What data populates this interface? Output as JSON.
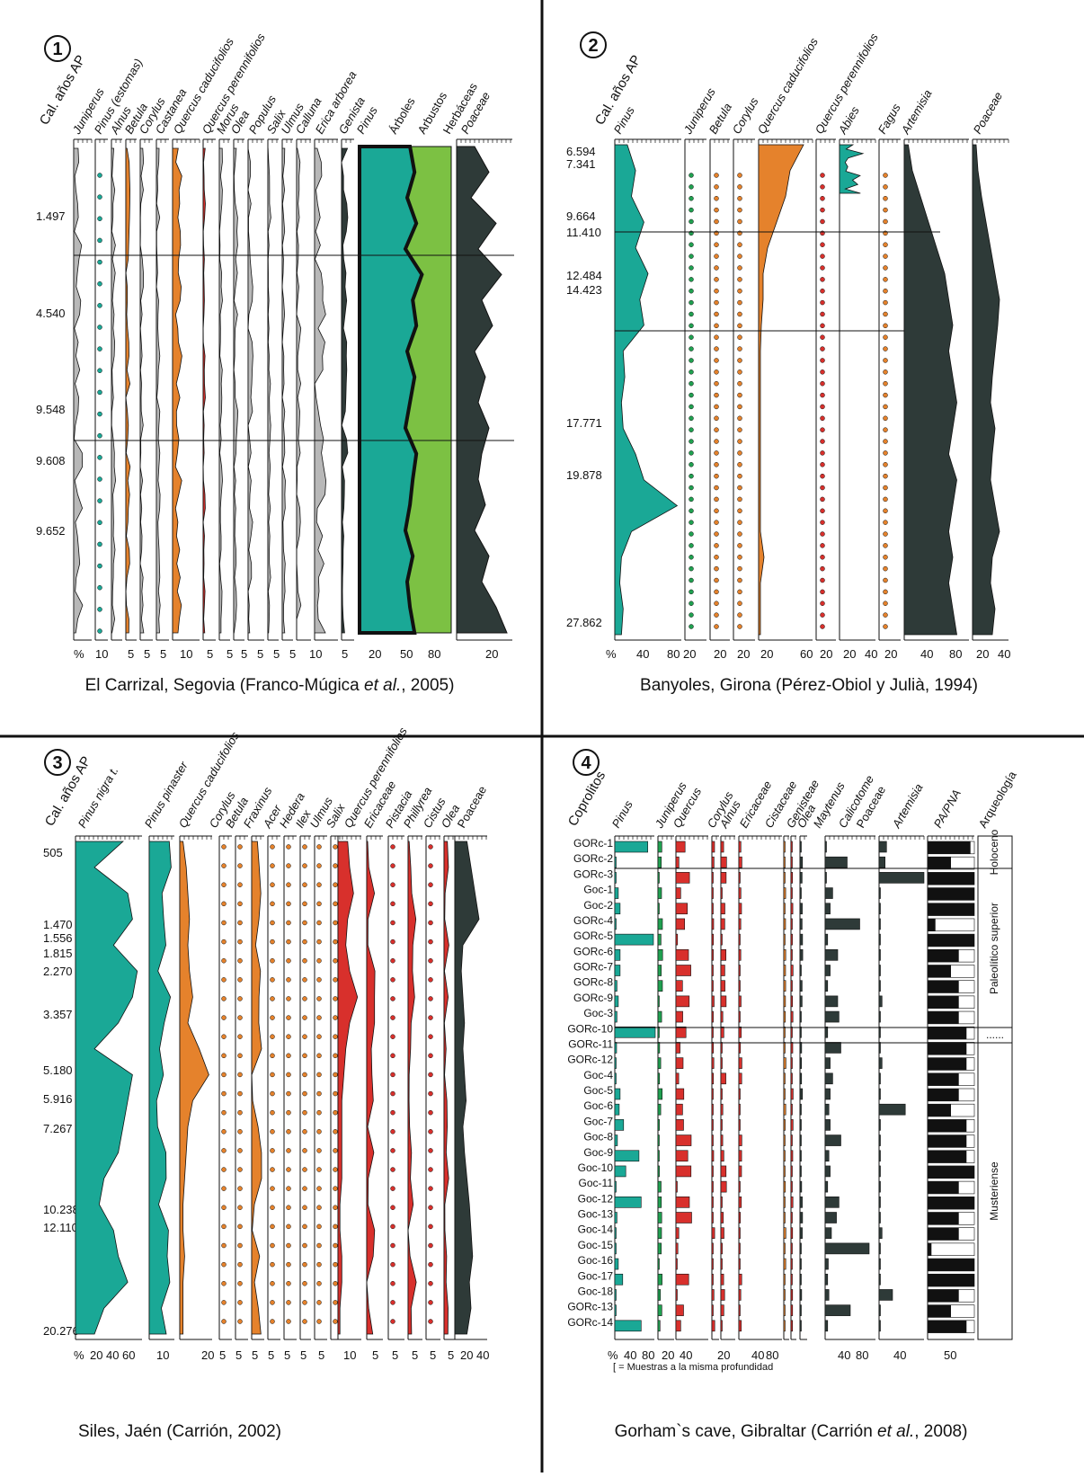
{
  "colors": {
    "teal": "#1aa896",
    "orange": "#e5822c",
    "red": "#d8302c",
    "dark": "#2e3a38",
    "lightgreen": "#7cc143",
    "green": "#20a050",
    "grey": "#b8b8b8"
  },
  "panels": [
    {
      "number": "1",
      "caption": "El Carrizal, Segovia (Franco-Múgica et al., 2005)",
      "caption_pre": "El Carrizal, Segovia (Franco-Múgica ",
      "caption_italic": "et al.",
      "caption_post": ", 2005)",
      "axis_title": "Cal. años AP",
      "ages": [
        "1.497",
        "4.540",
        "9.548",
        "9.608",
        "9.652"
      ],
      "taxa": [
        "Juniperus",
        "Pinus (estomas)",
        "Alnus",
        "Betula",
        "Corylus",
        "Castanea",
        "Quercus caducifolios",
        "Quercus perennifolios",
        "Morus",
        "Olea",
        "Populus",
        "Salix",
        "Ulmus",
        "Calluna",
        "Erica arborea",
        "Genista",
        "Pinus",
        "Árboles",
        "Arbustos",
        "Herbáceas",
        "Poaceae"
      ],
      "axis_ticks": [
        "%",
        "10",
        "5",
        "5",
        "5",
        "10",
        "5",
        "5",
        "5",
        "5",
        "5",
        "5",
        "10",
        "5",
        "20",
        "50",
        "80",
        "20"
      ]
    },
    {
      "number": "2",
      "caption": "Banyoles, Girona (Pérez-Obiol y Julià, 1994)",
      "axis_title": "Cal. años AP",
      "ages": [
        "6.594",
        "7.341",
        "9.664",
        "11.410",
        "12.484",
        "14.423",
        "17.771",
        "19.878",
        "27.862"
      ],
      "taxa": [
        "Pinus",
        "Juniperus",
        "Betula",
        "Corylus",
        "Quercus caducifolios",
        "Quercus perennifolios",
        "Abies",
        "Fagus",
        "Artemisia",
        "Poaceae"
      ],
      "axis_ticks": [
        "%",
        "40",
        "80",
        "20",
        "20",
        "20",
        "20",
        "60",
        "20",
        "20",
        "40",
        "20",
        "40",
        "80",
        "20",
        "40"
      ]
    },
    {
      "number": "3",
      "caption": "Siles, Jaén (Carrión, 2002)",
      "axis_title": "Cal. años AP",
      "ages": [
        "505",
        "1.470",
        "1.556",
        "1.815",
        "2.270",
        "3.357",
        "5.180",
        "5.916",
        "7.267",
        "10.238",
        "12.110",
        "20.276"
      ],
      "taxa": [
        "Pinus nigra t.",
        "Pinus pinaster",
        "Quercus caducifolios",
        "Corylus",
        "Betula",
        "Fraxinus",
        "Acer",
        "Hedera",
        "Ilex",
        "Ulmus",
        "Salix",
        "Quercus perennifolios",
        "Ericaceae",
        "Pistacia",
        "Phillyrea",
        "Cistus",
        "Olea",
        "Poaceae"
      ],
      "axis_ticks": [
        "%",
        "20",
        "40",
        "60",
        "10",
        "20",
        "5",
        "5",
        "5",
        "5",
        "5",
        "5",
        "5",
        "10",
        "5",
        "5",
        "5",
        "5",
        "5",
        "20",
        "40"
      ]
    },
    {
      "number": "4",
      "caption": "Gorham`s cave, Gibraltar (Carrión et al., 2008)",
      "caption_pre": "Gorham`s cave, Gibraltar (Carrión ",
      "caption_italic": "et al.",
      "caption_post": ", 2008)",
      "axis_title": "Coprolitos",
      "samples": [
        "GORc-1",
        "GORc-2",
        "GORc-3",
        "Goc-1",
        "Goc-2",
        "GORc-4",
        "GORc-5",
        "GORc-6",
        "GORc-7",
        "GORc-8",
        "GORc-9",
        "Goc-3",
        "GORc-10",
        "GORc-11",
        "GORc-12",
        "Goc-4",
        "Goc-5",
        "Goc-6",
        "Goc-7",
        "Goc-8",
        "Goc-9",
        "Goc-10",
        "Goc-11",
        "Goc-12",
        "Goc-13",
        "Goc-14",
        "Goc-15",
        "Goc-16",
        "Goc-17",
        "Goc-18",
        "GORc-13",
        "GORc-14"
      ],
      "taxa": [
        "Pinus",
        "Juniperus",
        "Quercus",
        "Corylus",
        "Alnus",
        "Ericaceae",
        "Cistaceae",
        "Genisteae",
        "Olea",
        "Maytenus",
        "Calicotome",
        "Poaceae",
        "Artemisia",
        "PA/PNA",
        "Arqueología"
      ],
      "archaeology": [
        "Holoceno",
        "Paleolítico superior",
        "......",
        "Musteriense"
      ],
      "axis_ticks": [
        "%",
        "40",
        "80",
        "20",
        "40",
        "20",
        "40",
        "80",
        "40",
        "80",
        "40",
        "50"
      ],
      "footnote": "[ = Muestras a la misma profundidad"
    }
  ],
  "chart_data": [
    {
      "type": "area",
      "title": "El Carrizal, Segovia (Franco-Múgica et al., 2005)",
      "ylabel": "Cal. años AP",
      "xlabel": "%",
      "y_ticks": [
        "1.497",
        "4.540",
        "9.548",
        "9.608",
        "9.652"
      ],
      "series": [
        {
          "name": "Pinus",
          "values": [
            55,
            60,
            52,
            62,
            50,
            68,
            58,
            62,
            52,
            60,
            55,
            50,
            62,
            58,
            55,
            50,
            58,
            52,
            55,
            60
          ]
        },
        {
          "name": "Poaceae",
          "values": [
            10,
            18,
            8,
            22,
            12,
            25,
            14,
            20,
            10,
            16,
            12,
            18,
            14,
            12,
            16,
            10,
            18,
            14,
            22,
            28
          ]
        },
        {
          "name": "Quercus caducifolios",
          "values": [
            2,
            3,
            4,
            3,
            4,
            3,
            3,
            4,
            3,
            3,
            4,
            3,
            3,
            3,
            2,
            2,
            2,
            2,
            2,
            2
          ]
        }
      ]
    },
    {
      "type": "area",
      "title": "Banyoles, Girona (Pérez-Obiol y Julià, 1994)",
      "ylabel": "Cal. años AP",
      "xlabel": "%",
      "y_ticks": [
        "6.594",
        "7.341",
        "9.664",
        "11.410",
        "12.484",
        "14.423",
        "17.771",
        "19.878",
        "27.862"
      ],
      "series": [
        {
          "name": "Pinus",
          "values": [
            15,
            25,
            20,
            35,
            25,
            40,
            30,
            35,
            10,
            12,
            8,
            10,
            25,
            35,
            75,
            20,
            8,
            6,
            10,
            8
          ]
        },
        {
          "name": "Quercus caducifolios",
          "values": [
            50,
            35,
            30,
            20,
            10,
            5,
            5,
            3,
            2,
            2,
            2,
            2,
            2,
            2,
            2,
            2,
            6,
            2,
            2,
            2
          ]
        },
        {
          "name": "Artemisia",
          "values": [
            5,
            10,
            20,
            30,
            40,
            50,
            55,
            60,
            55,
            60,
            65,
            60,
            55,
            65,
            60,
            55,
            60,
            55,
            60,
            65
          ]
        },
        {
          "name": "Poaceae",
          "values": [
            4,
            6,
            10,
            15,
            20,
            25,
            30,
            28,
            25,
            22,
            20,
            25,
            22,
            20,
            25,
            30,
            22,
            20,
            25,
            22
          ]
        }
      ]
    },
    {
      "type": "area",
      "title": "Siles, Jaén (Carrión, 2002)",
      "ylabel": "Cal. años AP",
      "xlabel": "%",
      "y_ticks": [
        "505",
        "1.470",
        "1.556",
        "1.815",
        "2.270",
        "3.357",
        "5.180",
        "5.916",
        "7.267",
        "10.238",
        "12.110",
        "20.276"
      ],
      "series": [
        {
          "name": "Pinus nigra t.",
          "values": [
            50,
            20,
            55,
            60,
            40,
            65,
            60,
            45,
            20,
            60,
            55,
            50,
            45,
            30,
            25,
            40,
            45,
            55,
            30,
            20
          ]
        },
        {
          "name": "Quercus caducifolios",
          "values": [
            2,
            4,
            5,
            6,
            5,
            6,
            8,
            5,
            12,
            18,
            8,
            5,
            4,
            3,
            2,
            2,
            3,
            2,
            2,
            2
          ]
        },
        {
          "name": "Quercus perennifolios",
          "values": [
            5,
            6,
            8,
            5,
            4,
            6,
            10,
            6,
            4,
            3,
            2,
            2,
            2,
            2,
            1,
            1,
            2,
            2,
            1,
            1
          ]
        },
        {
          "name": "Poaceae",
          "values": [
            15,
            20,
            25,
            30,
            10,
            8,
            10,
            12,
            10,
            12,
            14,
            10,
            12,
            15,
            18,
            20,
            22,
            18,
            20,
            15
          ]
        }
      ]
    },
    {
      "type": "bar",
      "title": "Gorham`s cave, Gibraltar (Carrión et al., 2008)",
      "ylabel": "Coprolitos",
      "xlabel": "%",
      "categories": [
        "GORc-1",
        "GORc-2",
        "GORc-3",
        "Goc-1",
        "Goc-2",
        "GORc-4",
        "GORc-5",
        "GORc-6",
        "GORc-7",
        "GORc-8",
        "GORc-9",
        "Goc-3",
        "GORc-10",
        "GORc-11",
        "GORc-12",
        "Goc-4",
        "Goc-5",
        "Goc-6",
        "Goc-7",
        "Goc-8",
        "Goc-9",
        "Goc-10",
        "Goc-11",
        "Goc-12",
        "Goc-13",
        "Goc-14",
        "Goc-15",
        "Goc-16",
        "Goc-17",
        "Goc-18",
        "GORc-13",
        "GORc-14"
      ],
      "series": [
        {
          "name": "Pinus",
          "values": [
            75,
            0,
            0,
            8,
            12,
            2,
            88,
            12,
            12,
            5,
            8,
            5,
            92,
            4,
            2,
            2,
            12,
            10,
            20,
            6,
            55,
            25,
            2,
            60,
            5,
            3,
            2,
            8,
            18,
            2,
            2,
            60
          ]
        },
        {
          "name": "Poaceae",
          "values": [
            0,
            35,
            0,
            12,
            8,
            55,
            4,
            20,
            8,
            4,
            20,
            22,
            4,
            25,
            8,
            12,
            8,
            6,
            8,
            25,
            6,
            8,
            4,
            22,
            18,
            10,
            70,
            5,
            4,
            6,
            40,
            4
          ]
        },
        {
          "name": "Artemisia",
          "values": [
            10,
            8,
            60,
            0,
            0,
            0,
            0,
            0,
            0,
            0,
            4,
            0,
            0,
            0,
            4,
            0,
            0,
            35,
            0,
            0,
            0,
            0,
            0,
            0,
            0,
            4,
            0,
            0,
            0,
            18,
            0,
            0
          ]
        },
        {
          "name": "PA/PNA",
          "values": [
            55,
            30,
            60,
            60,
            60,
            10,
            60,
            40,
            30,
            40,
            40,
            40,
            50,
            50,
            50,
            40,
            40,
            30,
            50,
            50,
            50,
            60,
            40,
            60,
            40,
            40,
            5,
            60,
            60,
            40,
            30,
            50
          ]
        }
      ]
    }
  ]
}
